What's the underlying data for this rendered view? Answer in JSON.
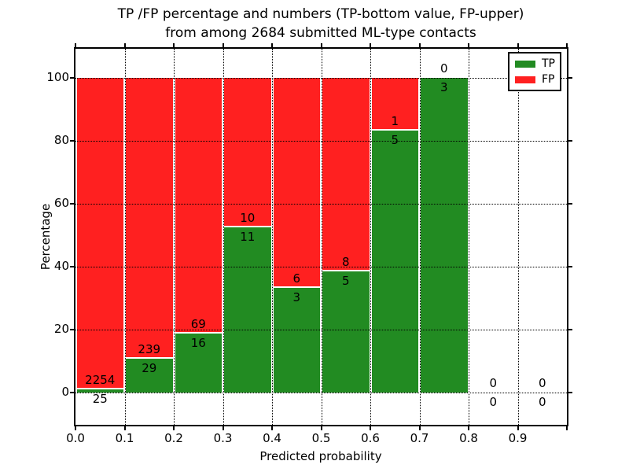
{
  "figure": {
    "title_line1": "TP /FP percentage and numbers (TP-bottom value, FP-upper)",
    "title_line2": "from among 2684 submitted ML-type contacts"
  },
  "chart_data": {
    "type": "bar",
    "stacked": true,
    "title": "TP /FP percentage and numbers (TP-bottom value, FP-upper) from among 2684 submitted ML-type contacts",
    "xlabel": "Predicted probability",
    "ylabel": "Percentage",
    "total_submitted": 2684,
    "bin_width": 0.1,
    "categories": [
      "0.0-0.1",
      "0.1-0.2",
      "0.2-0.3",
      "0.3-0.4",
      "0.4-0.5",
      "0.5-0.6",
      "0.6-0.7",
      "0.7-0.8",
      "0.8-0.9",
      "0.9-1.0"
    ],
    "series": [
      {
        "name": "TP",
        "color": "#228b22",
        "counts": [
          25,
          29,
          16,
          11,
          3,
          5,
          5,
          3,
          0,
          0
        ],
        "percent": [
          1.1,
          10.8,
          18.8,
          52.4,
          33.3,
          38.5,
          83.3,
          100.0,
          0.0,
          0.0
        ]
      },
      {
        "name": "FP",
        "color": "#ff2020",
        "counts": [
          2254,
          239,
          69,
          10,
          6,
          8,
          1,
          0,
          0,
          0
        ],
        "percent": [
          98.9,
          89.2,
          81.2,
          47.6,
          66.7,
          61.5,
          16.7,
          0.0,
          0.0,
          0.0
        ]
      }
    ],
    "xticks": [
      "0.0",
      "0.1",
      "0.2",
      "0.3",
      "0.4",
      "0.5",
      "0.6",
      "0.7",
      "0.8",
      "0.9"
    ],
    "yticks": [
      0,
      20,
      40,
      60,
      80,
      100
    ],
    "xlim": [
      0.0,
      1.0
    ],
    "ylim": [
      -10,
      110
    ],
    "grid": true,
    "grid_style": "dotted",
    "label_note": "TP count below segment boundary, FP count above segment boundary",
    "legend": {
      "position": "upper right",
      "entries": [
        "TP",
        "FP"
      ]
    }
  }
}
